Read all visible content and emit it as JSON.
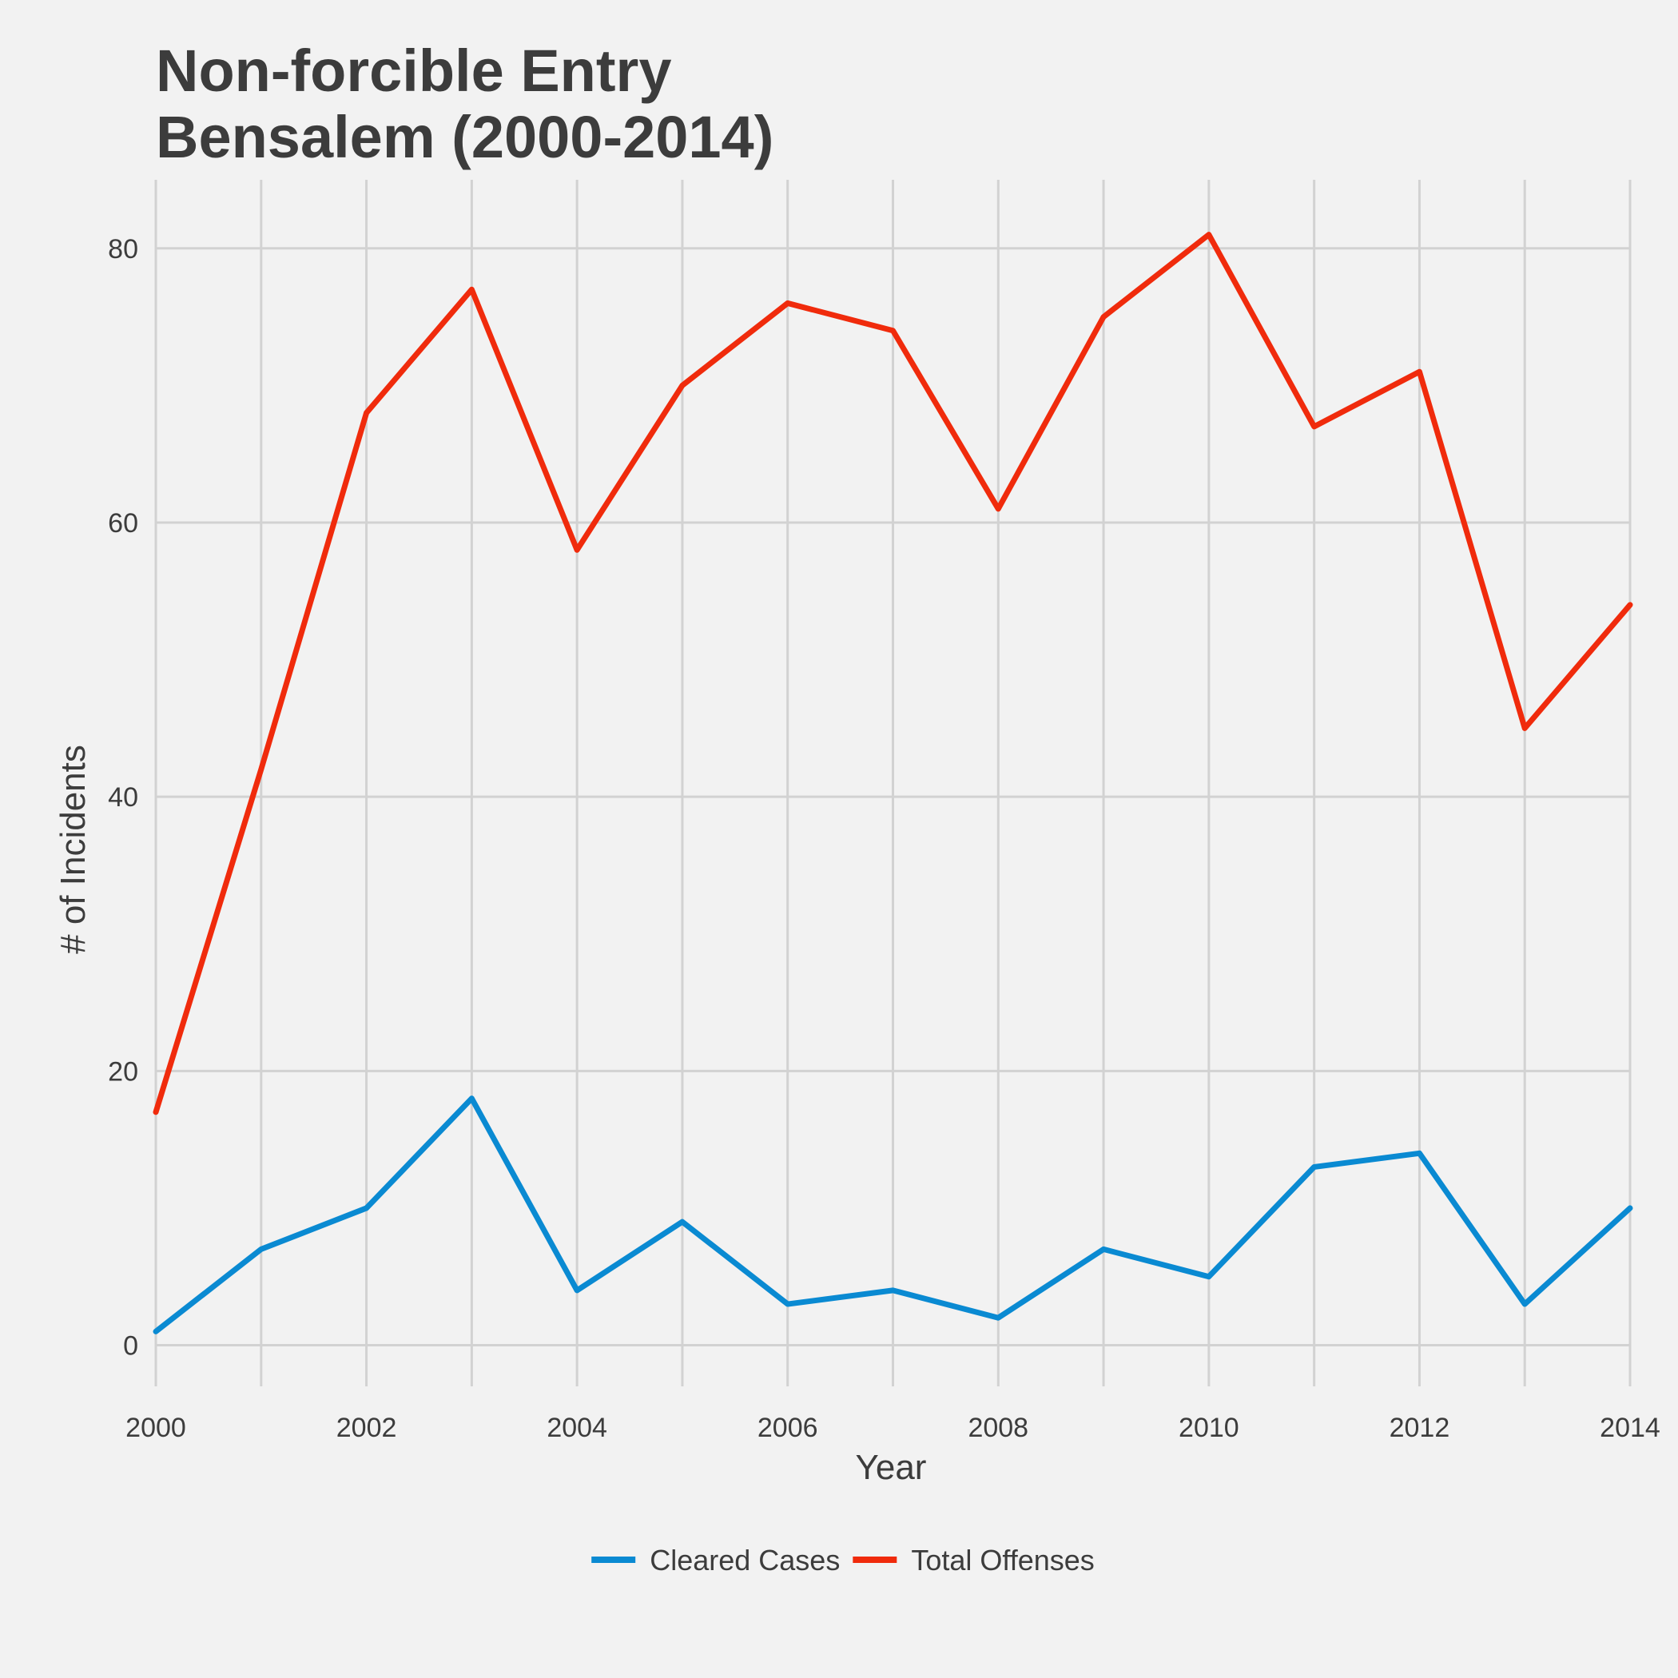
{
  "chart_data": {
    "type": "line",
    "title_lines": [
      "Non-forcible Entry",
      "Bensalem (2000-2014)"
    ],
    "xlabel": "Year",
    "ylabel": "# of Incidents",
    "x": [
      2000,
      2001,
      2002,
      2003,
      2004,
      2005,
      2006,
      2007,
      2008,
      2009,
      2010,
      2011,
      2012,
      2013,
      2014
    ],
    "xlim": [
      2000,
      2014
    ],
    "ylim": [
      -3,
      85
    ],
    "x_ticks": [
      2000,
      2002,
      2004,
      2006,
      2008,
      2010,
      2012,
      2014
    ],
    "y_ticks": [
      0,
      20,
      40,
      60,
      80
    ],
    "grid": true,
    "legend_position": "bottom",
    "series": [
      {
        "name": "Cleared Cases",
        "color": "#0a8ad2",
        "values": [
          1,
          7,
          10,
          18,
          4,
          9,
          3,
          4,
          2,
          7,
          5,
          13,
          14,
          3,
          10
        ]
      },
      {
        "name": "Total Offenses",
        "color": "#f02b0c",
        "values": [
          17,
          42,
          68,
          77,
          58,
          70,
          76,
          74,
          61,
          75,
          81,
          67,
          71,
          45,
          54
        ]
      }
    ]
  }
}
